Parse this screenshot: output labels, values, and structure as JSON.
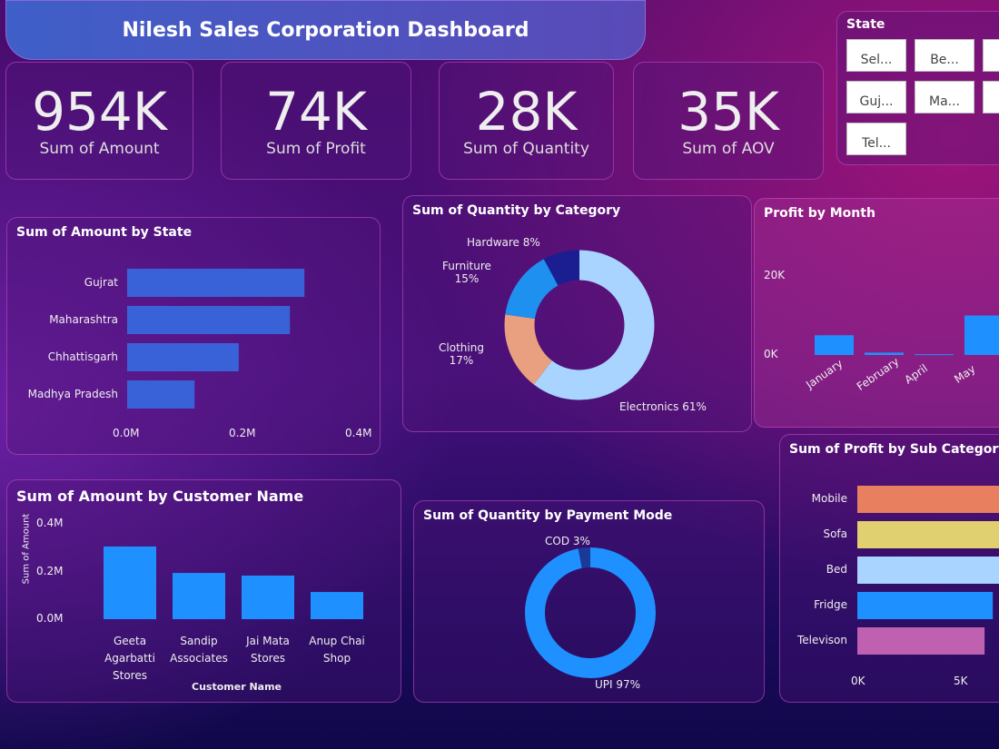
{
  "header": {
    "title": "Nilesh Sales Corporation Dashboard"
  },
  "kpis": [
    {
      "value": "954K",
      "label": "Sum of Amount"
    },
    {
      "value": "74K",
      "label": "Sum of Profit"
    },
    {
      "value": "28K",
      "label": "Sum of Quantity"
    },
    {
      "value": "35K",
      "label": "Sum of AOV"
    }
  ],
  "slicer": {
    "title": "State",
    "options": [
      "Sel...",
      "Be...",
      "Guj...",
      "Ma...",
      "Tel..."
    ]
  },
  "chart_data": [
    {
      "id": "amount_by_state",
      "type": "bar",
      "orientation": "horizontal",
      "title": "Sum of Amount by State",
      "categories": [
        "Gujrat",
        "Maharashtra",
        "Chhattisgarh",
        "Madhya Pradesh"
      ],
      "values": [
        0.305,
        0.28,
        0.192,
        0.116
      ],
      "unit": "M",
      "xticks": [
        "0.0M",
        "0.2M",
        "0.4M"
      ],
      "xlim": [
        0,
        0.4
      ],
      "color": "#3a62d8"
    },
    {
      "id": "quantity_by_category",
      "type": "pie",
      "title": "Sum of Quantity by Category",
      "labels": [
        "Electronics 61%",
        "Clothing 17%",
        "Furniture 15%",
        "Hardware 8%"
      ],
      "values": [
        61,
        17,
        15,
        8
      ],
      "colors": [
        "#a8d4ff",
        "#e8a080",
        "#1e90f0",
        "#1a1e90"
      ]
    },
    {
      "id": "profit_by_month",
      "type": "bar",
      "title": "Profit by Month",
      "categories": [
        "January",
        "February",
        "April",
        "May"
      ],
      "values": [
        5000,
        600,
        200,
        10000
      ],
      "yticks": [
        "0K",
        "20K"
      ],
      "ylim": [
        0,
        20000
      ],
      "color": "#1e90ff"
    },
    {
      "id": "amount_by_customer",
      "type": "bar",
      "title": "Sum of Amount by Customer Name",
      "categories": [
        "Geeta Agarbatti Stores",
        "Sandip Associates",
        "Jai Mata Stores",
        "Anup Chai Shop"
      ],
      "values": [
        0.305,
        0.194,
        0.183,
        0.114
      ],
      "yticks": [
        "0.0M",
        "0.2M",
        "0.4M"
      ],
      "ylim": [
        0,
        0.4
      ],
      "xlabel": "Customer Name",
      "ylabel": "Sum of Amount",
      "color": "#1e90ff"
    },
    {
      "id": "quantity_by_payment",
      "type": "pie",
      "title": "Sum of Quantity by Payment Mode",
      "labels": [
        "UPI 97%",
        "COD 3%"
      ],
      "values": [
        97,
        3
      ],
      "colors": [
        "#1e90ff",
        "#1a3a9a"
      ]
    },
    {
      "id": "profit_by_subcategory",
      "type": "bar",
      "orientation": "horizontal",
      "title": "Sum of Profit by Sub Category",
      "categories": [
        "Mobile",
        "Sofa",
        "Bed",
        "Fridge",
        "Televison"
      ],
      "values": [
        7500,
        7300,
        7100,
        6600,
        6200
      ],
      "xticks": [
        "0K",
        "5K"
      ],
      "xlim": [
        0,
        5000
      ],
      "colors": [
        "#e88060",
        "#e0d070",
        "#a8d4ff",
        "#1e90ff",
        "#c060b0"
      ]
    }
  ]
}
